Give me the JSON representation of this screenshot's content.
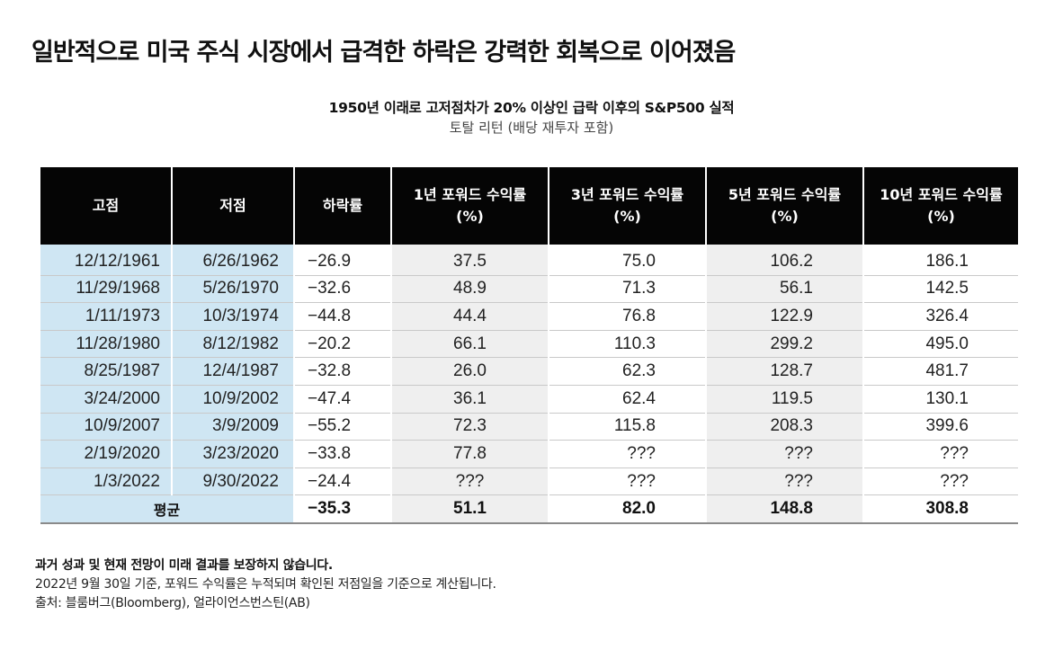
{
  "headline": "일반적으로 미국 주식 시장에서 급격한 하락은 강력한 회복으로 이어졌음",
  "chart_data": {
    "type": "table",
    "title": "1950년 이래로 고저점차가 20% 이상인 급락 이후의 S&P500 실적",
    "subtitle": "토탈 리턴 (배당 재투자 포함)",
    "columns": [
      "고점",
      "저점",
      "하락률",
      "1년 포워드 수익률\n(%)",
      "3년 포워드 수익률\n(%)",
      "5년 포워드 수익률\n(%)",
      "10년 포워드 수익률\n(%)"
    ],
    "rows": [
      {
        "peak": "12/12/1961",
        "trough": "6/26/1962",
        "decline": "−26.9",
        "r1": "37.5",
        "r3": "75.0",
        "r5": "106.2",
        "r10": "186.1"
      },
      {
        "peak": "11/29/1968",
        "trough": "5/26/1970",
        "decline": "−32.6",
        "r1": "48.9",
        "r3": "71.3",
        "r5": "56.1",
        "r10": "142.5"
      },
      {
        "peak": "1/11/1973",
        "trough": "10/3/1974",
        "decline": "−44.8",
        "r1": "44.4",
        "r3": "76.8",
        "r5": "122.9",
        "r10": "326.4"
      },
      {
        "peak": "11/28/1980",
        "trough": "8/12/1982",
        "decline": "−20.2",
        "r1": "66.1",
        "r3": "110.3",
        "r5": "299.2",
        "r10": "495.0"
      },
      {
        "peak": "8/25/1987",
        "trough": "12/4/1987",
        "decline": "−32.8",
        "r1": "26.0",
        "r3": "62.3",
        "r5": "128.7",
        "r10": "481.7"
      },
      {
        "peak": "3/24/2000",
        "trough": "10/9/2002",
        "decline": "−47.4",
        "r1": "36.1",
        "r3": "62.4",
        "r5": "119.5",
        "r10": "130.1"
      },
      {
        "peak": "10/9/2007",
        "trough": "3/9/2009",
        "decline": "−55.2",
        "r1": "72.3",
        "r3": "115.8",
        "r5": "208.3",
        "r10": "399.6"
      },
      {
        "peak": "2/19/2020",
        "trough": "3/23/2020",
        "decline": "−33.8",
        "r1": "77.8",
        "r3": "???",
        "r5": "???",
        "r10": "???"
      },
      {
        "peak": "1/3/2022",
        "trough": "9/30/2022",
        "decline": "−24.4",
        "r1": "???",
        "r3": "???",
        "r5": "???",
        "r10": "???"
      }
    ],
    "average": {
      "label": "평균",
      "decline": "−35.3",
      "r1": "51.1",
      "r3": "82.0",
      "r5": "148.8",
      "r10": "308.8"
    }
  },
  "footer": {
    "disclaimer": "과거 성과 및 현재 전망이 미래 결과를 보장하지 않습니다.",
    "note": "2022년 9월 30일 기준, 포워드 수익률은 누적되며 확인된 저점일을 기준으로 계산됩니다.",
    "source": "출처: 블룸버그(Bloomberg), 얼라이언스번스틴(AB)"
  },
  "colors": {
    "header_bg": "#050505",
    "date_col_bg": "#cfe6f3",
    "shaded_col_bg": "#efefef"
  }
}
